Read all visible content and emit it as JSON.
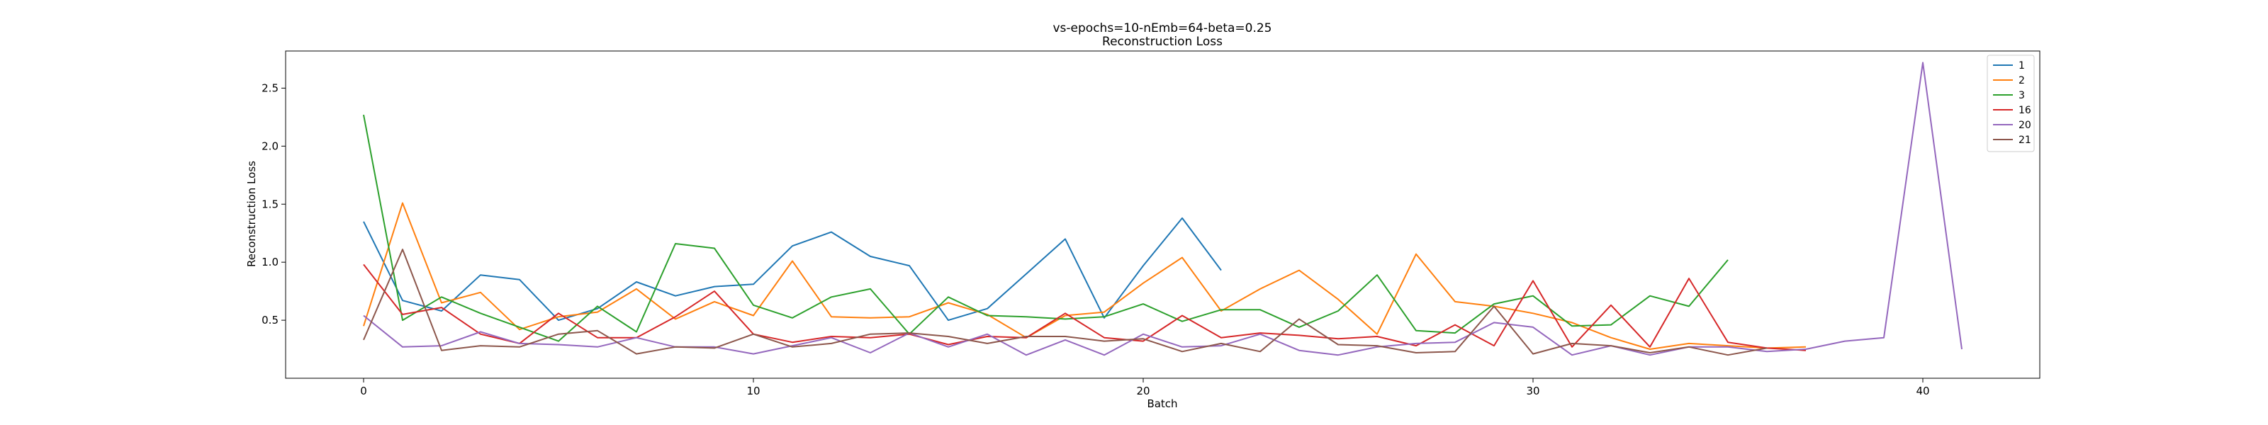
{
  "chart_data": {
    "type": "line",
    "title": "vs-epochs=10-nEmb=64-beta=0.25",
    "subtitle": "Reconstruction Loss",
    "xlabel": "Batch",
    "ylabel": "Reconstruction Loss",
    "xlim": [
      -2,
      43
    ],
    "ylim": [
      0.0,
      2.82
    ],
    "xticks": [
      0,
      10,
      20,
      30,
      40
    ],
    "yticks": [
      0.5,
      1.0,
      1.5,
      2.0,
      2.5
    ],
    "ytick_labels": [
      "0.5",
      "1.0",
      "1.5",
      "2.0",
      "2.5"
    ],
    "grid": false,
    "legend_position": "top-right",
    "series": [
      {
        "name": "1",
        "color": "#1f77b4",
        "x": [
          0,
          1,
          2,
          3,
          4,
          5,
          6,
          7,
          8,
          9,
          10,
          11,
          12,
          13,
          14,
          15,
          16,
          17,
          18,
          19,
          20,
          21,
          22
        ],
        "y": [
          1.35,
          0.67,
          0.58,
          0.89,
          0.85,
          0.5,
          0.6,
          0.83,
          0.71,
          0.79,
          0.81,
          1.14,
          1.26,
          1.05,
          0.97,
          0.5,
          0.6,
          0.9,
          1.2,
          0.52,
          0.97,
          1.38,
          0.93
        ]
      },
      {
        "name": "2",
        "color": "#ff7f0e",
        "x": [
          0,
          1,
          2,
          3,
          4,
          5,
          6,
          7,
          8,
          9,
          10,
          11,
          12,
          13,
          14,
          15,
          16,
          17,
          18,
          19,
          20,
          21,
          22,
          23,
          24,
          25,
          26,
          27,
          28,
          29,
          30,
          31,
          32,
          33,
          34,
          35,
          36,
          37
        ],
        "y": [
          0.45,
          1.51,
          0.65,
          0.74,
          0.42,
          0.53,
          0.57,
          0.77,
          0.51,
          0.66,
          0.54,
          1.01,
          0.53,
          0.52,
          0.53,
          0.65,
          0.55,
          0.35,
          0.54,
          0.57,
          0.82,
          1.04,
          0.58,
          0.77,
          0.93,
          0.68,
          0.38,
          1.07,
          0.66,
          0.62,
          0.56,
          0.48,
          0.35,
          0.25,
          0.3,
          0.28,
          0.26,
          0.27
        ]
      },
      {
        "name": "3",
        "color": "#2ca02c",
        "x": [
          0,
          1,
          2,
          3,
          4,
          5,
          6,
          7,
          8,
          9,
          10,
          11,
          12,
          13,
          14,
          15,
          16,
          17,
          18,
          19,
          20,
          21,
          22,
          23,
          24,
          25,
          26,
          27,
          28,
          29,
          30,
          31,
          32,
          33,
          34,
          35
        ],
        "y": [
          2.27,
          0.5,
          0.7,
          0.56,
          0.44,
          0.32,
          0.62,
          0.4,
          1.16,
          1.12,
          0.63,
          0.52,
          0.7,
          0.77,
          0.38,
          0.7,
          0.54,
          0.53,
          0.51,
          0.53,
          0.64,
          0.49,
          0.59,
          0.59,
          0.44,
          0.58,
          0.89,
          0.41,
          0.39,
          0.64,
          0.71,
          0.45,
          0.46,
          0.71,
          0.62,
          1.02
        ]
      },
      {
        "name": "16",
        "color": "#d62728",
        "x": [
          0,
          1,
          2,
          3,
          4,
          5,
          6,
          7,
          8,
          9,
          10,
          11,
          12,
          13,
          14,
          15,
          16,
          17,
          18,
          19,
          20,
          21,
          22,
          23,
          24,
          25,
          26,
          27,
          28,
          29,
          30,
          31,
          32,
          33,
          34,
          35,
          36,
          37
        ],
        "y": [
          0.98,
          0.55,
          0.61,
          0.38,
          0.3,
          0.56,
          0.35,
          0.35,
          0.53,
          0.75,
          0.38,
          0.31,
          0.36,
          0.35,
          0.38,
          0.29,
          0.36,
          0.35,
          0.56,
          0.35,
          0.32,
          0.54,
          0.35,
          0.39,
          0.37,
          0.34,
          0.36,
          0.28,
          0.46,
          0.28,
          0.84,
          0.27,
          0.63,
          0.27,
          0.86,
          0.31,
          0.26,
          0.24
        ]
      },
      {
        "name": "20",
        "color": "#9467bd",
        "x": [
          0,
          1,
          2,
          3,
          4,
          5,
          6,
          7,
          8,
          9,
          10,
          11,
          12,
          13,
          14,
          15,
          16,
          17,
          18,
          19,
          20,
          21,
          22,
          23,
          24,
          25,
          26,
          27,
          28,
          29,
          30,
          31,
          32,
          33,
          34,
          35,
          36,
          37,
          38,
          39,
          40,
          41
        ],
        "y": [
          0.54,
          0.27,
          0.28,
          0.4,
          0.3,
          0.29,
          0.27,
          0.35,
          0.27,
          0.27,
          0.21,
          0.28,
          0.35,
          0.22,
          0.39,
          0.27,
          0.38,
          0.2,
          0.33,
          0.2,
          0.38,
          0.27,
          0.28,
          0.38,
          0.24,
          0.2,
          0.27,
          0.3,
          0.31,
          0.48,
          0.44,
          0.2,
          0.28,
          0.2,
          0.27,
          0.27,
          0.23,
          0.25,
          0.32,
          0.35,
          2.72,
          0.25
        ]
      },
      {
        "name": "21",
        "color": "#8c564b",
        "x": [
          0,
          1,
          2,
          3,
          4,
          5,
          6,
          7,
          8,
          9,
          10,
          11,
          12,
          13,
          14,
          15,
          16,
          17,
          18,
          19,
          20,
          21,
          22,
          23,
          24,
          25,
          26,
          27,
          28,
          29,
          30,
          31,
          32,
          33,
          34,
          35,
          36
        ],
        "y": [
          0.33,
          1.11,
          0.24,
          0.28,
          0.27,
          0.38,
          0.41,
          0.21,
          0.27,
          0.26,
          0.38,
          0.27,
          0.3,
          0.38,
          0.39,
          0.36,
          0.3,
          0.36,
          0.36,
          0.32,
          0.34,
          0.23,
          0.3,
          0.23,
          0.51,
          0.29,
          0.28,
          0.22,
          0.23,
          0.62,
          0.21,
          0.3,
          0.28,
          0.22,
          0.27,
          0.2,
          0.26
        ]
      }
    ]
  }
}
